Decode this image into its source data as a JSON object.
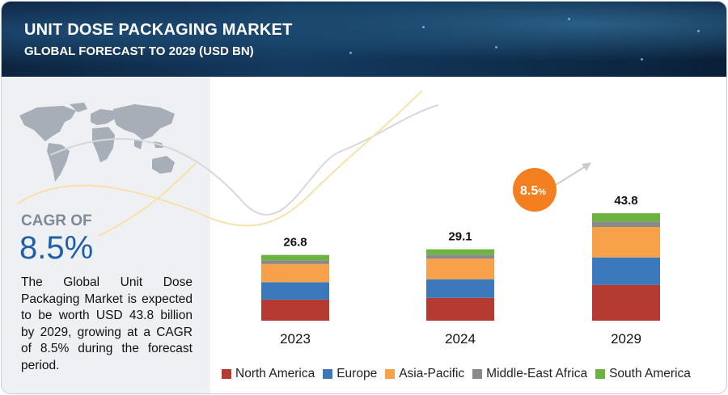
{
  "header": {
    "title": "UNIT DOSE PACKAGING MARKET",
    "subtitle": "GLOBAL FORECAST TO 2029 (USD BN)"
  },
  "left_panel": {
    "cagr_label": "CAGR OF",
    "cagr_value": "8.5%",
    "description": "The Global Unit Dose Packaging Market is expected to be worth USD 43.8 billion by 2029, growing at a CAGR of 8.5% during the forecast period."
  },
  "colors": {
    "north_america": "#b53a32",
    "europe": "#3c78bc",
    "asia_pacific": "#f7a24b",
    "middle_east_africa": "#8a8a8a",
    "south_america": "#6db33f",
    "badge": "#f47f20"
  },
  "chart_data": {
    "type": "bar",
    "stacked": true,
    "categories": [
      "2023",
      "2024",
      "2029"
    ],
    "totals": [
      26.8,
      29.1,
      43.8
    ],
    "total_labels": [
      "26.8",
      "29.1",
      "43.8"
    ],
    "series": [
      {
        "name": "North America",
        "values": [
          8.6,
          9.3,
          14.6
        ]
      },
      {
        "name": "Europe",
        "values": [
          7.1,
          7.6,
          11.2
        ]
      },
      {
        "name": "Asia-Pacific",
        "values": [
          7.4,
          8.4,
          12.4
        ]
      },
      {
        "name": "Middle-East Africa",
        "values": [
          1.5,
          1.6,
          2.2
        ]
      },
      {
        "name": "South America",
        "values": [
          2.2,
          2.2,
          3.4
        ]
      }
    ],
    "annotation": {
      "badge_main": "8.5",
      "badge_suffix": "%"
    },
    "ylim": [
      0,
      48
    ],
    "grid": false,
    "legend_position": "bottom"
  }
}
